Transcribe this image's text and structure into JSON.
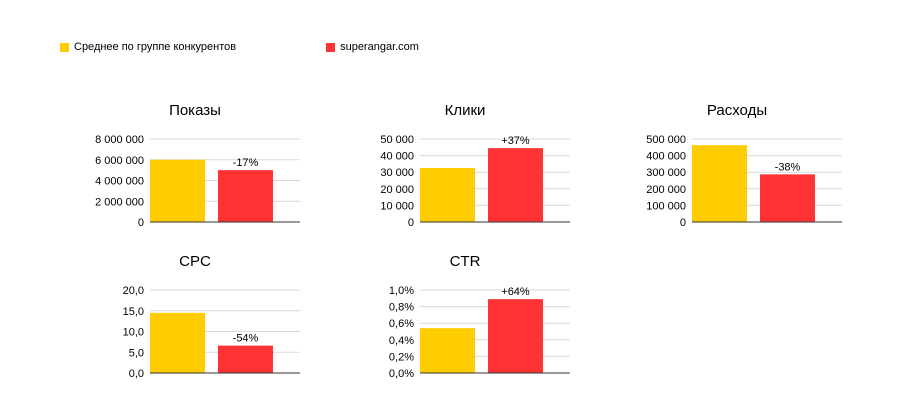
{
  "legend": {
    "competitors": {
      "label": "Среднее по группе конкурентов",
      "color": "#FFCC00"
    },
    "site": {
      "label": "superangar.com",
      "color": "#FF3333"
    }
  },
  "chart_data": [
    {
      "type": "bar",
      "title": "Показы",
      "categories": [
        "Среднее по группе конкурентов",
        "superangar.com"
      ],
      "values": [
        6000000,
        5000000
      ],
      "ylim": [
        0,
        8000000
      ],
      "ticks": [
        0,
        2000000,
        4000000,
        6000000,
        8000000
      ],
      "tick_labels": [
        "0",
        "2 000 000",
        "4 000 000",
        "6 000 000",
        "8 000 000"
      ],
      "annotation": "-17%",
      "grid": true
    },
    {
      "type": "bar",
      "title": "Клики",
      "categories": [
        "Среднее по группе конкурентов",
        "superangar.com"
      ],
      "values": [
        32500,
        44500
      ],
      "ylim": [
        0,
        50000
      ],
      "ticks": [
        0,
        10000,
        20000,
        30000,
        40000,
        50000
      ],
      "tick_labels": [
        "0",
        "10 000",
        "20 000",
        "30 000",
        "40 000",
        "50 000"
      ],
      "annotation": "+37%",
      "grid": true
    },
    {
      "type": "bar",
      "title": "Расходы",
      "categories": [
        "Среднее по группе конкурентов",
        "superangar.com"
      ],
      "values": [
        463000,
        287000
      ],
      "ylim": [
        0,
        500000
      ],
      "ticks": [
        0,
        100000,
        200000,
        300000,
        400000,
        500000
      ],
      "tick_labels": [
        "0",
        "100 000",
        "200 000",
        "300 000",
        "400 000",
        "500 000"
      ],
      "annotation": "-38%",
      "grid": true
    },
    {
      "type": "bar",
      "title": "CPC",
      "categories": [
        "Среднее по группе конкурентов",
        "superangar.com"
      ],
      "values": [
        14.5,
        6.6
      ],
      "ylim": [
        0,
        20
      ],
      "ticks": [
        0,
        5,
        10,
        15,
        20
      ],
      "tick_labels": [
        "0,0",
        "5,0",
        "10,0",
        "15,0",
        "20,0"
      ],
      "annotation": "-54%",
      "grid": true
    },
    {
      "type": "bar",
      "title": "CTR",
      "categories": [
        "Среднее по группе конкурентов",
        "superangar.com"
      ],
      "values": [
        0.54,
        0.89
      ],
      "ylim": [
        0,
        1.0
      ],
      "ticks": [
        0,
        0.2,
        0.4,
        0.6,
        0.8,
        1.0
      ],
      "tick_labels": [
        "0,0%",
        "0,2%",
        "0,4%",
        "0,6%",
        "0,8%",
        "1,0%"
      ],
      "annotation": "+64%",
      "grid": true
    }
  ]
}
